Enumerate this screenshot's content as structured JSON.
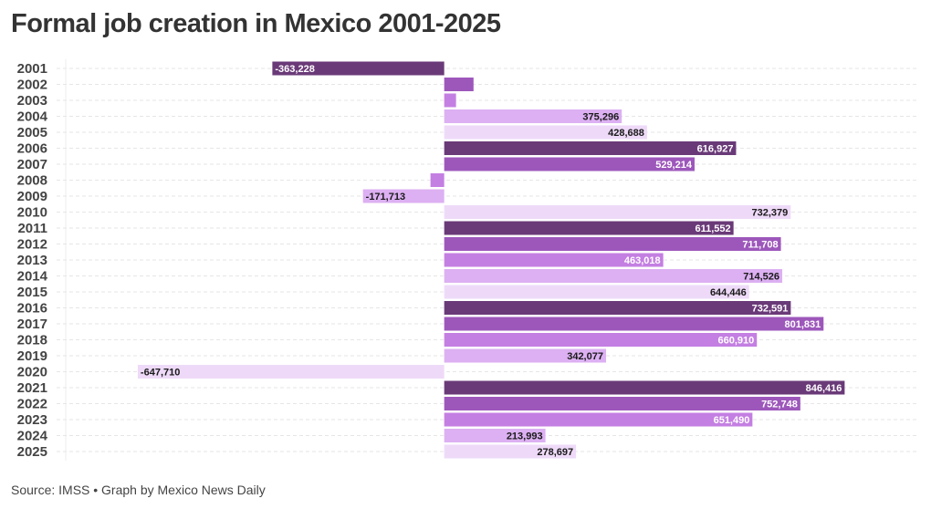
{
  "title": "Formal job creation in Mexico 2001-2025",
  "source": "Source: IMSS • Graph by Mexico News Daily",
  "chart_data": {
    "type": "bar",
    "orientation": "horizontal",
    "title": "Formal job creation in Mexico 2001-2025",
    "xlabel": "",
    "ylabel": "",
    "xlim": [
      -800000,
      1000000
    ],
    "grid": true,
    "categories": [
      "2001",
      "2002",
      "2003",
      "2004",
      "2005",
      "2006",
      "2007",
      "2008",
      "2009",
      "2010",
      "2011",
      "2012",
      "2013",
      "2014",
      "2015",
      "2016",
      "2017",
      "2018",
      "2019",
      "2020",
      "2021",
      "2022",
      "2023",
      "2024",
      "2025"
    ],
    "values": [
      -363228,
      62000,
      25000,
      375296,
      428688,
      616927,
      529214,
      -29000,
      -171713,
      732379,
      611552,
      711708,
      463018,
      714526,
      644446,
      732591,
      801831,
      660910,
      342077,
      -647710,
      846416,
      752748,
      651490,
      213993,
      278697
    ],
    "labels": [
      "-363,228",
      "",
      "",
      "375,296",
      "428,688",
      "616,927",
      "529,214",
      "",
      "-171,713",
      "732,379",
      "611,552",
      "711,708",
      "463,018",
      "714,526",
      "644,446",
      "732,591",
      "801,831",
      "660,910",
      "342,077",
      "-647,710",
      "846,416",
      "752,748",
      "651,490",
      "213,993",
      "278,697"
    ],
    "colors": [
      "#6a3a78",
      "#9d57bb",
      "#c47fe2",
      "#dcb0f2",
      "#eedaf8"
    ],
    "label_colors": [
      "#ffffff",
      "#ffffff",
      "#ffffff",
      "#1a1a1a",
      "#1a1a1a"
    ]
  }
}
